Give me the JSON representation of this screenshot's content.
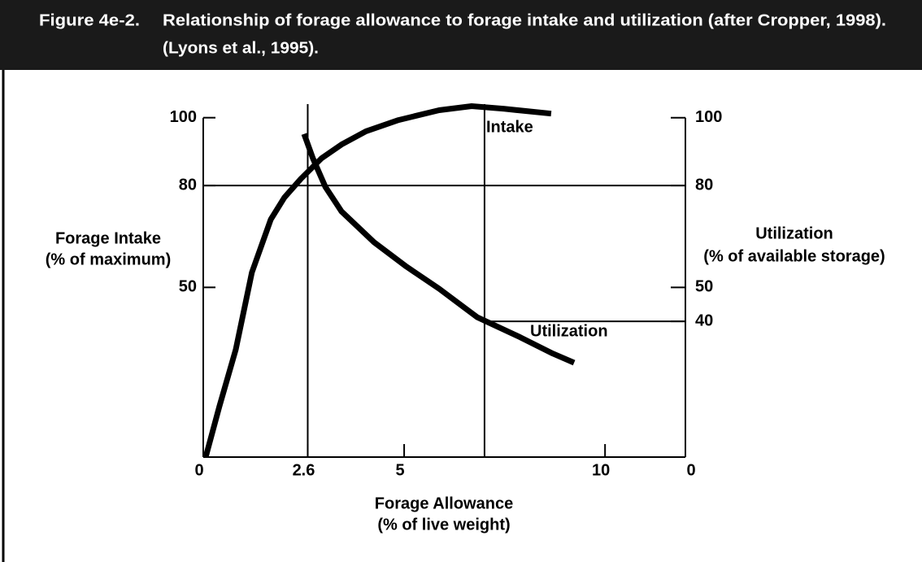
{
  "chart_data": {
    "type": "line",
    "figure_number": "Figure 4e-2.",
    "title": "Relationship of forage allowance to forage intake and utilization (after Cropper, 1998).",
    "title_line2": "(Lyons et al., 1995).",
    "x_label": [
      "Forage Allowance",
      "(% of live weight)"
    ],
    "y_label": [
      "Forage Intake",
      "(% of maximum)"
    ],
    "y2_label": [
      "Utilization",
      "(% of available storage)"
    ],
    "xlim": [
      0,
      12
    ],
    "xticks": [
      0,
      2.6,
      5,
      10
    ],
    "ylim": [
      0,
      104
    ],
    "yticks": [
      50,
      80,
      100
    ],
    "y2lim": [
      0,
      104
    ],
    "y2ticks": [
      0,
      40,
      50,
      80,
      100
    ],
    "reference_lines": {
      "x": [
        2.6,
        7
      ],
      "y": [
        80
      ],
      "y2": [
        40
      ]
    },
    "series": [
      {
        "name": "Intake",
        "color": "#000000",
        "x": [
          0.06,
          0.4,
          0.81,
          1.21,
          1.68,
          2.02,
          2.43,
          2.94,
          3.44,
          4.05,
          4.86,
          5.87,
          6.68,
          7.49,
          8.66
        ],
        "values": [
          0,
          14.9,
          31.7,
          54.4,
          70,
          76.5,
          82,
          88,
          92.1,
          96,
          99.3,
          102.2,
          103.4,
          102.6,
          101.2
        ]
      },
      {
        "name": "Utilization",
        "color": "#000000",
        "axis": "y2",
        "x": [
          2.51,
          2.73,
          3.04,
          3.44,
          4.25,
          5.06,
          5.87,
          6.82,
          7.89,
          8.7,
          9.23
        ],
        "values": [
          95.2,
          88,
          79.6,
          72.4,
          63.3,
          56.1,
          49.6,
          41.2,
          35.3,
          30.5,
          27.8
        ]
      }
    ]
  }
}
